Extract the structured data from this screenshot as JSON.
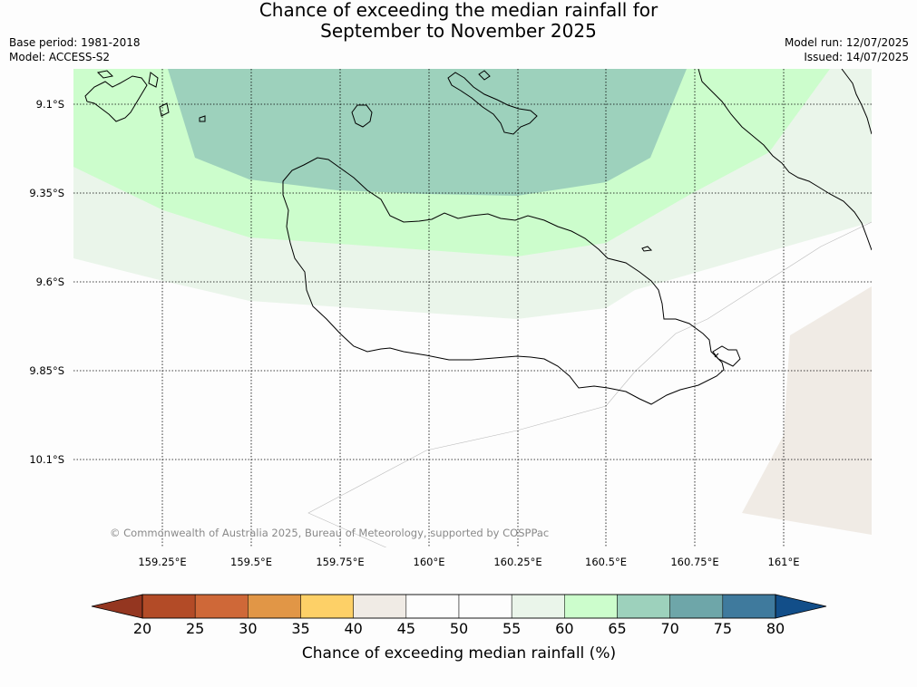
{
  "header": {
    "title_line1": "Chance of exceeding the median rainfall for",
    "title_line2": "September to November 2025",
    "base_period": "Base period: 1981-2018",
    "model": "Model: ACCESS-S2",
    "model_run": "Model run: 12/07/2025",
    "issued": "Issued: 14/07/2025"
  },
  "map": {
    "lat_labels": [
      "9.1°S",
      "9.35°S",
      "9.6°S",
      "9.85°S",
      "10.1°S"
    ],
    "lon_labels": [
      "159.25°E",
      "159.5°E",
      "159.75°E",
      "160°E",
      "160.25°E",
      "160.5°E",
      "160.75°E",
      "161°E"
    ],
    "copyright": "© Commonwealth of Australia 2025, Bureau of Meteorology, supported by COSPPac",
    "zones": [
      {
        "name": "65-70",
        "color": "#9dd1bc"
      },
      {
        "name": "60-65",
        "color": "#ccfdcc"
      },
      {
        "name": "55-60",
        "color": "#eaf5ea"
      },
      {
        "name": "45-55",
        "color": "#fdfdfd"
      },
      {
        "name": "40-45",
        "color": "#f0ebe5"
      }
    ]
  },
  "colorbar": {
    "ticks": [
      "20",
      "25",
      "30",
      "35",
      "40",
      "45",
      "50",
      "55",
      "60",
      "65",
      "70",
      "75",
      "80"
    ],
    "colors": [
      "#b34b27",
      "#cf6838",
      "#e19646",
      "#fdd067",
      "#f0ebe5",
      "#fdfdfd",
      "#fdfdfd",
      "#eaf5ea",
      "#ccfdcc",
      "#9dd1bc",
      "#6ea6a9",
      "#3f7a9d"
    ],
    "low_extend_color": "#943620",
    "high_extend_color": "#124e89",
    "label": "Chance of exceeding median rainfall (%)"
  }
}
